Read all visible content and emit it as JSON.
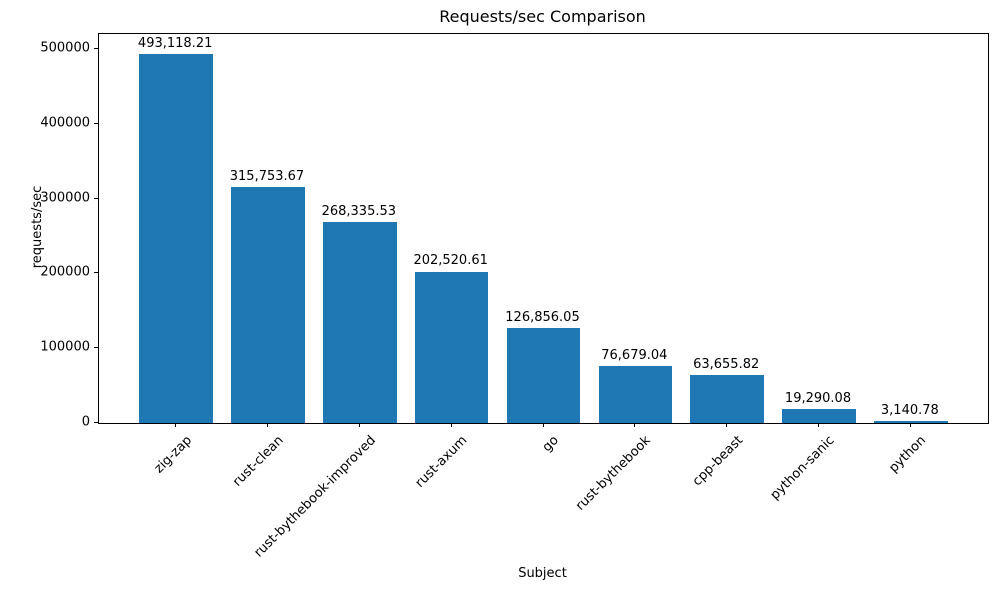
{
  "chart_data": {
    "type": "bar",
    "title": "Requests/sec Comparison",
    "xlabel": "Subject",
    "ylabel": "requests/sec",
    "categories": [
      "zig-zap",
      "rust-clean",
      "rust-bythebook-improved",
      "rust-axum",
      "go",
      "rust-bythebook",
      "cpp-beast",
      "python-sanic",
      "python"
    ],
    "values": [
      493118.21,
      315753.67,
      268335.53,
      202520.61,
      126856.05,
      76679.04,
      63655.82,
      19290.08,
      3140.78
    ],
    "value_labels": [
      "493,118.21",
      "315,753.67",
      "268,335.53",
      "202,520.61",
      "126,856.05",
      "76,679.04",
      "63,655.82",
      "19,290.08",
      "3,140.78"
    ],
    "yticks": [
      0,
      100000,
      200000,
      300000,
      400000,
      500000
    ],
    "ytick_labels": [
      "0",
      "100000",
      "200000",
      "300000",
      "400000",
      "500000"
    ],
    "ylim": [
      0,
      520000
    ],
    "xlim": [
      -0.84,
      8.84
    ],
    "bar_width": 0.8,
    "bar_color": "#1f77b4",
    "grid": false,
    "legend": null,
    "x_tick_rotation": 45
  }
}
